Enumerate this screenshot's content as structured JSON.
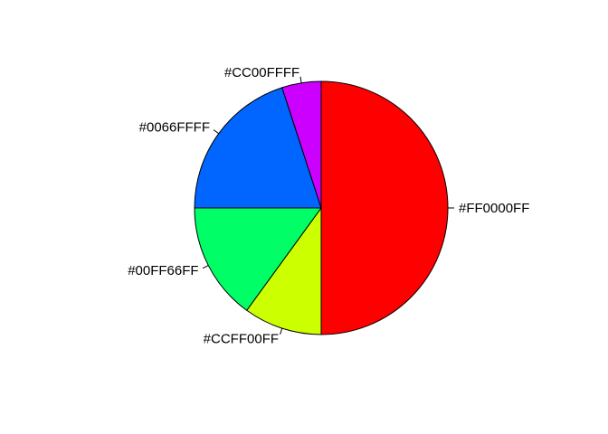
{
  "chart_data": {
    "type": "pie",
    "labels": [
      "#FF0000FF",
      "#CCFF00FF",
      "#00FF66FF",
      "#0066FFFF",
      "#CC00FFFF"
    ],
    "values": [
      50,
      10,
      15,
      20,
      5
    ],
    "colors": [
      "#FF0000",
      "#CCFF00",
      "#00FF66",
      "#0066FF",
      "#CC00FF"
    ],
    "start_angle_deg": 90,
    "direction": "clockwise",
    "title": "",
    "legend": "none"
  }
}
